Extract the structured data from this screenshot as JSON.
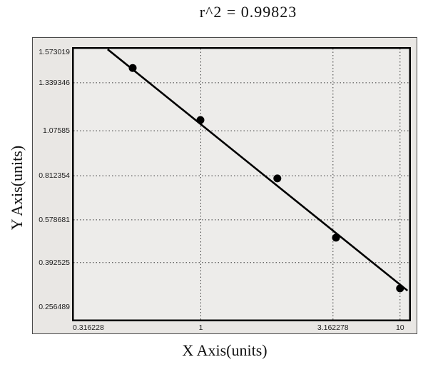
{
  "title_text": "r^2  =  0.99823",
  "chart_data": {
    "type": "scatter",
    "title": "r^2 = 0.99823",
    "r_squared": 0.99823,
    "xlabel": "X Axis(units)",
    "ylabel": "Y Axis(units)",
    "x_scale": "log",
    "y_scale": "linear",
    "grid": "dotted",
    "legend": "none",
    "colors": {
      "point": "#000000",
      "line": "#000000",
      "frame": "#000000",
      "figure_bg": "#e9e7e4",
      "plot_bg": "#edecea",
      "grid_color": "#3a3a3a"
    },
    "x_ticks": [
      {
        "label": "0.316228",
        "value": 0.316228,
        "pos": 0.0,
        "grid": false,
        "align": "left"
      },
      {
        "label": "1",
        "value": 1,
        "pos": 0.38,
        "grid": true,
        "align": "center"
      },
      {
        "label": "3.162278",
        "value": 3.162278,
        "pos": 0.77,
        "grid": true,
        "align": "center"
      },
      {
        "label": "10",
        "value": 10,
        "pos": 0.968,
        "grid": true,
        "align": "center"
      }
    ],
    "y_ticks": [
      {
        "label": "1.573019",
        "value": 1.573019,
        "pos": 0.018,
        "grid": false
      },
      {
        "label": "1.339346",
        "value": 1.339346,
        "pos": 0.13,
        "grid": true
      },
      {
        "label": "1.07585",
        "value": 1.07585,
        "pos": 0.305,
        "grid": true
      },
      {
        "label": "0.812354",
        "value": 0.812354,
        "pos": 0.469,
        "grid": true
      },
      {
        "label": "0.578681",
        "value": 0.578681,
        "pos": 0.63,
        "grid": true
      },
      {
        "label": "0.392525",
        "value": 0.392525,
        "pos": 0.786,
        "grid": true
      },
      {
        "label": "0.256489",
        "value": 0.256489,
        "pos": 0.948,
        "grid": false
      }
    ],
    "points": [
      {
        "x": 0.55,
        "y": 1.5,
        "fx": 0.179,
        "fy": 0.076
      },
      {
        "x": 1.1,
        "y": 1.18,
        "fx": 0.379,
        "fy": 0.266
      },
      {
        "x": 2.2,
        "y": 0.82,
        "fx": 0.606,
        "fy": 0.479
      },
      {
        "x": 4.5,
        "y": 0.51,
        "fx": 0.779,
        "fy": 0.695
      },
      {
        "x": 10.0,
        "y": 0.33,
        "fx": 0.968,
        "fy": 0.88
      }
    ],
    "fit_line": {
      "start": {
        "fx": 0.105,
        "fy": 0.008
      },
      "end": {
        "fx": 0.99,
        "fy": 0.888
      }
    }
  }
}
